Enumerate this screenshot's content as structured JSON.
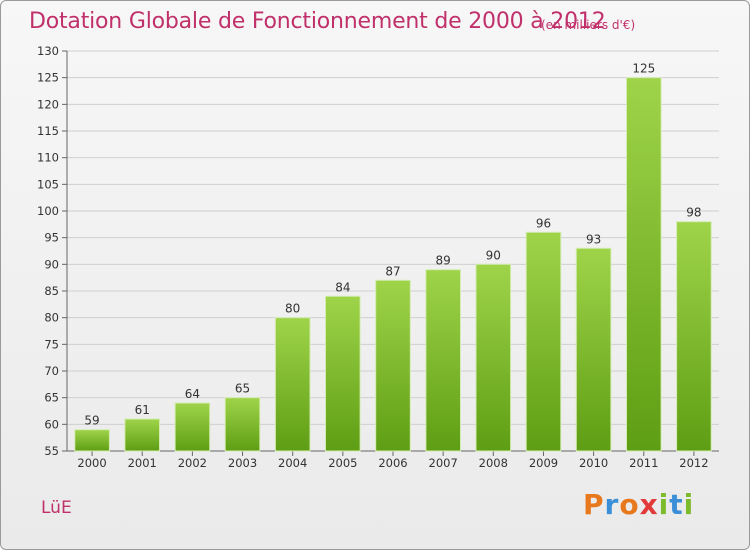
{
  "header": {
    "title": "Dotation Globale de Fonctionnement de 2000 à 2012",
    "unit": "(en milliers d'€)"
  },
  "footer": {
    "commune": "LüE",
    "brand": "Proxiti",
    "brand_letters": [
      "P",
      "r",
      "o",
      "x",
      "i",
      "t",
      "i"
    ],
    "brand_colors": [
      "#e8781e",
      "#3b8fd6",
      "#e8781e",
      "#e23a3a",
      "#7cbc2c",
      "#3b8fd6",
      "#7cbc2c"
    ]
  },
  "colors": {
    "bar_top": "#9fd44a",
    "bar_bottom": "#5e9e14",
    "accent": "#c0306a",
    "grid": "#cfcfcf"
  },
  "chart_data": {
    "type": "bar",
    "title": "Dotation Globale de Fonctionnement de 2000 à 2012",
    "ylabel": "(en milliers d'€)",
    "xlabel": "",
    "categories": [
      "2000",
      "2001",
      "2002",
      "2003",
      "2004",
      "2005",
      "2006",
      "2007",
      "2008",
      "2009",
      "2010",
      "2011",
      "2012"
    ],
    "values": [
      59,
      61,
      64,
      65,
      80,
      84,
      87,
      89,
      90,
      96,
      93,
      125,
      98
    ],
    "ylim": [
      55,
      130
    ],
    "ytick_step": 5,
    "grid": true,
    "legend": "none"
  }
}
